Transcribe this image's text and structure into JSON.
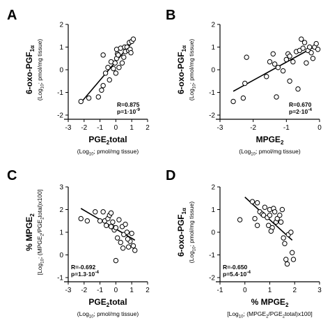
{
  "chart_data": [
    {
      "type": "scatter",
      "panel": "A",
      "xlim": [
        -3,
        2
      ],
      "ylim": [
        -2,
        2
      ],
      "xticks": [
        "-3",
        "-2",
        "-1",
        "0",
        "1",
        "2"
      ],
      "yticks": [
        "-2",
        "-1",
        "0",
        "1",
        "2"
      ],
      "ylabel_main": "6-oxo-PGF",
      "ylabel_sub": "1α",
      "ylabel_unit": "(Log",
      "ylabel_unit_sub": "10",
      "ylabel_unit_rest": "; pmol/mg tissue)",
      "xlabel_main": "PGE",
      "xlabel_sub": "2",
      "xlabel_rest": "total",
      "xlabel_unit": "(Log",
      "xlabel_unit_sub": "10",
      "xlabel_unit_rest": "; pmol/mg tissue)",
      "stat_r": "R=0.875",
      "stat_p": "p=1·10",
      "stat_p_exp": "-9",
      "stats_position": "bottom-right",
      "fit": [
        [
          -2.2,
          -1.45
        ],
        [
          1.2,
          1.35
        ]
      ],
      "points": [
        [
          -2.2,
          -1.4
        ],
        [
          -1.7,
          -1.25
        ],
        [
          -1.1,
          -1.2
        ],
        [
          -0.9,
          -0.9
        ],
        [
          -0.8,
          -0.7
        ],
        [
          -0.65,
          -0.15
        ],
        [
          -0.5,
          0.1
        ],
        [
          -0.4,
          -0.45
        ],
        [
          -0.3,
          0.35
        ],
        [
          -0.15,
          0.05
        ],
        [
          -0.05,
          0.3
        ],
        [
          0.0,
          -0.15
        ],
        [
          0.05,
          0.5
        ],
        [
          0.05,
          0.9
        ],
        [
          0.1,
          0.7
        ],
        [
          0.15,
          0.65
        ],
        [
          0.2,
          0.1
        ],
        [
          0.3,
          0.95
        ],
        [
          0.4,
          0.3
        ],
        [
          0.5,
          0.55
        ],
        [
          0.55,
          1.0
        ],
        [
          0.6,
          0.8
        ],
        [
          0.7,
          1.0
        ],
        [
          0.8,
          0.85
        ],
        [
          0.85,
          1.2
        ],
        [
          0.9,
          0.9
        ],
        [
          0.95,
          0.75
        ],
        [
          1.0,
          1.25
        ],
        [
          1.1,
          1.35
        ],
        [
          -0.8,
          0.65
        ]
      ]
    },
    {
      "type": "scatter",
      "panel": "B",
      "xlim": [
        -3,
        0
      ],
      "ylim": [
        -2,
        2
      ],
      "xticks": [
        "-3",
        "-2",
        "-1",
        "0"
      ],
      "yticks": [
        "-2",
        "-1",
        "0",
        "1",
        "2"
      ],
      "ylabel_main": "6-oxo-PGF",
      "ylabel_sub": "1α",
      "ylabel_unit": "(Log",
      "ylabel_unit_sub": "10",
      "ylabel_unit_rest": "; pmol/mg tissue)",
      "xlabel_main": "MPGE",
      "xlabel_sub": "2",
      "xlabel_rest": "",
      "xlabel_unit": "(Log",
      "xlabel_unit_sub": "10",
      "xlabel_unit_rest": "; pmol/mg tissue)",
      "stat_r": "R=0.670",
      "stat_p": "p=2·10",
      "stat_p_exp": "-4",
      "stats_position": "bottom-right",
      "fit": [
        [
          -2.6,
          -0.95
        ],
        [
          -0.05,
          1.1
        ]
      ],
      "points": [
        [
          -2.6,
          -1.4
        ],
        [
          -2.3,
          -1.25
        ],
        [
          -2.25,
          -0.6
        ],
        [
          -2.2,
          0.55
        ],
        [
          -1.6,
          -0.3
        ],
        [
          -1.5,
          0.35
        ],
        [
          -1.4,
          0.7
        ],
        [
          -1.35,
          0.25
        ],
        [
          -1.3,
          -1.2
        ],
        [
          -1.25,
          0.1
        ],
        [
          -1.1,
          -0.05
        ],
        [
          -1.0,
          0.45
        ],
        [
          -0.95,
          0.7
        ],
        [
          -0.9,
          0.6
        ],
        [
          -0.8,
          0.35
        ],
        [
          -0.7,
          0.8
        ],
        [
          -0.65,
          -0.85
        ],
        [
          -0.6,
          0.85
        ],
        [
          -0.55,
          1.35
        ],
        [
          -0.5,
          0.95
        ],
        [
          -0.45,
          1.2
        ],
        [
          -0.4,
          0.3
        ],
        [
          -0.35,
          0.85
        ],
        [
          -0.3,
          1.0
        ],
        [
          -0.25,
          0.75
        ],
        [
          -0.2,
          0.5
        ],
        [
          -0.15,
          1.0
        ],
        [
          -0.1,
          1.15
        ],
        [
          -0.05,
          0.9
        ],
        [
          -0.9,
          -0.5
        ]
      ]
    },
    {
      "type": "scatter",
      "panel": "C",
      "xlim": [
        -3,
        2
      ],
      "ylim": [
        -1,
        3
      ],
      "xticks": [
        "-3",
        "-2",
        "-1",
        "0",
        "1",
        "2"
      ],
      "yticks": [
        "-1",
        "0",
        "1",
        "2",
        "3"
      ],
      "ylabel_main": "% MPGE",
      "ylabel_main_sub": "2",
      "ylabel_unit": "[Log",
      "ylabel_unit_sub": "10",
      "ylabel_unit_rest": "; (MPGE",
      "ylabel_unit_sub2": "2",
      "ylabel_unit_rest2": "/PGE",
      "ylabel_unit_sub3": "2",
      "ylabel_unit_rest3": "total)x100]",
      "xlabel_main": "PGE",
      "xlabel_sub": "2",
      "xlabel_rest": "total",
      "xlabel_unit": "(Log",
      "xlabel_unit_sub": "10",
      "xlabel_unit_rest": "; pmol/mg tissue)",
      "stat_r": "R=-0.692",
      "stat_p": "p=1.3·10",
      "stat_p_exp": "-4",
      "stats_position": "bottom-left",
      "fit": [
        [
          -2.2,
          2.05
        ],
        [
          1.2,
          0.65
        ]
      ],
      "points": [
        [
          -2.2,
          1.6
        ],
        [
          -1.8,
          1.5
        ],
        [
          -1.3,
          1.9
        ],
        [
          -1.0,
          1.5
        ],
        [
          -0.8,
          1.9
        ],
        [
          -0.7,
          1.5
        ],
        [
          -0.6,
          1.3
        ],
        [
          -0.5,
          1.6
        ],
        [
          -0.4,
          1.75
        ],
        [
          -0.3,
          1.85
        ],
        [
          -0.2,
          1.45
        ],
        [
          -0.15,
          1.2
        ],
        [
          -0.1,
          1.1
        ],
        [
          0.0,
          1.2
        ],
        [
          0.0,
          -0.25
        ],
        [
          0.1,
          0.75
        ],
        [
          0.2,
          1.55
        ],
        [
          0.3,
          0.55
        ],
        [
          0.4,
          1.25
        ],
        [
          0.5,
          0.9
        ],
        [
          0.6,
          1.35
        ],
        [
          0.7,
          1.0
        ],
        [
          0.8,
          0.35
        ],
        [
          0.9,
          0.6
        ],
        [
          1.0,
          0.95
        ],
        [
          1.1,
          0.4
        ],
        [
          1.2,
          0.2
        ],
        [
          -0.3,
          1.25
        ],
        [
          0.45,
          0.3
        ],
        [
          0.75,
          0.7
        ]
      ]
    },
    {
      "type": "scatter",
      "panel": "D",
      "xlim": [
        -1,
        3
      ],
      "ylim": [
        -2,
        2
      ],
      "xticks": [
        "-1",
        "0",
        "1",
        "2",
        "3"
      ],
      "yticks": [
        "-2",
        "-1",
        "0",
        "1",
        "2"
      ],
      "ylabel_main": "6-oxo-PGF",
      "ylabel_sub": "1α",
      "ylabel_unit": "(Log",
      "ylabel_unit_sub": "10",
      "ylabel_unit_rest": "; pmol/mg tissue)",
      "xlabel_main": "% MPGE",
      "xlabel_sub": "2",
      "xlabel_rest": "",
      "xlabel_unit": "[Log",
      "xlabel_unit_sub": "10",
      "xlabel_unit_rest": "; (MPGE",
      "xlabel_unit_sub2": "2",
      "xlabel_unit_rest2": "/PGE",
      "xlabel_unit_sub3": "2",
      "xlabel_unit_rest3": "total)x100]",
      "stat_r": "R=-0.650",
      "stat_p": "p=5.4·10",
      "stat_p_exp": "-4",
      "stats_position": "bottom-left",
      "fit": [
        [
          0.0,
          1.55
        ],
        [
          1.9,
          -0.35
        ]
      ],
      "points": [
        [
          -0.2,
          0.55
        ],
        [
          0.3,
          1.35
        ],
        [
          0.4,
          0.6
        ],
        [
          0.5,
          1.3
        ],
        [
          0.5,
          0.3
        ],
        [
          0.6,
          0.9
        ],
        [
          0.7,
          0.8
        ],
        [
          0.75,
          0.75
        ],
        [
          0.8,
          1.1
        ],
        [
          0.9,
          0.65
        ],
        [
          0.95,
          0.3
        ],
        [
          1.0,
          1.0
        ],
        [
          1.0,
          0.75
        ],
        [
          1.1,
          0.2
        ],
        [
          1.15,
          1.05
        ],
        [
          1.2,
          0.9
        ],
        [
          1.25,
          0.45
        ],
        [
          1.3,
          0.6
        ],
        [
          1.4,
          0.75
        ],
        [
          1.45,
          0.45
        ],
        [
          1.5,
          1.0
        ],
        [
          1.55,
          -0.25
        ],
        [
          1.6,
          -0.5
        ],
        [
          1.65,
          -1.2
        ],
        [
          1.7,
          -1.4
        ],
        [
          1.75,
          -0.1
        ],
        [
          1.85,
          0.0
        ],
        [
          1.9,
          -0.9
        ],
        [
          1.95,
          -1.2
        ],
        [
          1.05,
          0.05
        ]
      ]
    }
  ]
}
